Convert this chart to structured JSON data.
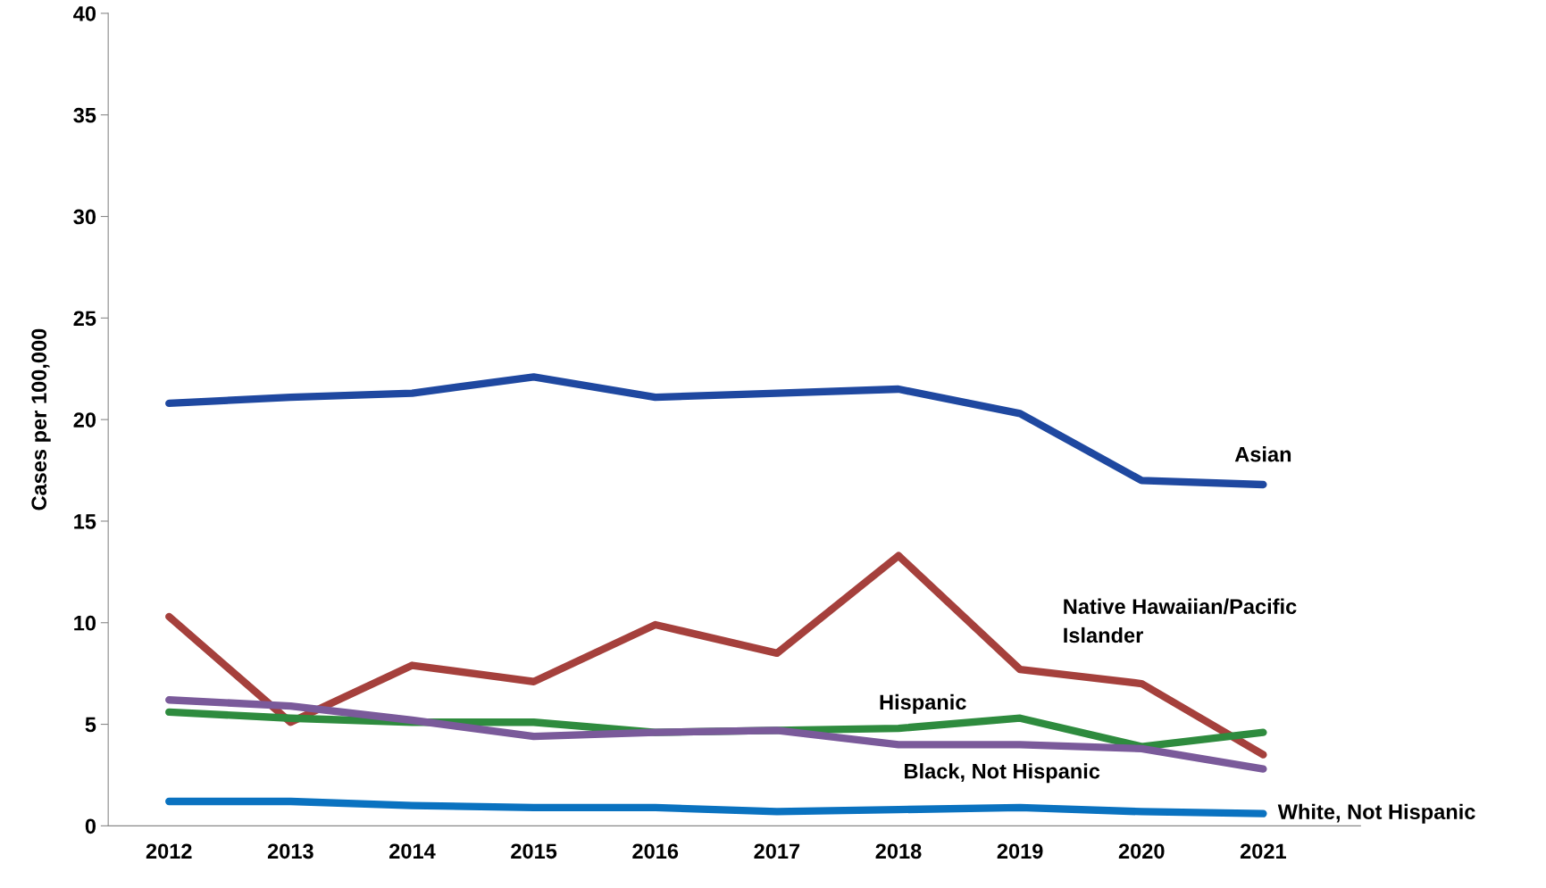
{
  "chart_data": {
    "type": "line",
    "ylabel": "Cases per 100,000",
    "categories": [
      "2012",
      "2013",
      "2014",
      "2015",
      "2016",
      "2017",
      "2018",
      "2019",
      "2020",
      "2021"
    ],
    "ylim": [
      0,
      40
    ],
    "yticks": [
      0,
      5,
      10,
      15,
      20,
      25,
      30,
      35,
      40
    ],
    "grid": false,
    "legend": false,
    "line_style": "solid",
    "marker": "none",
    "series": [
      {
        "name": "Asian",
        "color": "#1f48a0",
        "values": [
          20.8,
          21.1,
          21.3,
          22.1,
          21.1,
          21.3,
          21.5,
          20.3,
          17.0,
          16.8
        ]
      },
      {
        "name": "Native Hawaiian/Pacific\nIslander",
        "color": "#a5403c",
        "values": [
          10.3,
          5.1,
          7.9,
          7.1,
          9.9,
          8.5,
          13.3,
          7.7,
          7.0,
          3.5
        ]
      },
      {
        "name": "Hispanic",
        "color": "#2e8b3e",
        "values": [
          5.6,
          5.3,
          5.1,
          5.1,
          4.6,
          4.7,
          4.8,
          5.3,
          3.9,
          4.6
        ]
      },
      {
        "name": "Black, Not Hispanic",
        "color": "#7a5a9a",
        "values": [
          6.2,
          5.9,
          5.2,
          4.4,
          4.6,
          4.7,
          4.0,
          4.0,
          3.8,
          2.8
        ]
      },
      {
        "name": "White, Not Hispanic",
        "color": "#0a72c0",
        "values": [
          1.2,
          1.2,
          1.0,
          0.9,
          0.9,
          0.7,
          0.8,
          0.9,
          0.7,
          0.6
        ]
      }
    ]
  }
}
